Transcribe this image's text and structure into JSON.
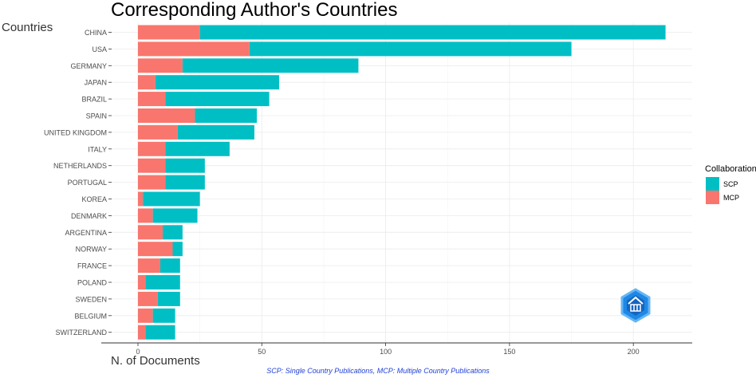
{
  "chart_data": {
    "type": "bar",
    "orientation": "horizontal",
    "stacked": true,
    "title": "Corresponding Author's Countries",
    "xlabel": "N. of Documents",
    "ylabel": "Countries",
    "xlim": [
      0,
      225
    ],
    "xticks": [
      0,
      50,
      100,
      150,
      200
    ],
    "grid": true,
    "categories": [
      "CHINA",
      "USA",
      "GERMANY",
      "JAPAN",
      "BRAZIL",
      "SPAIN",
      "UNITED KINGDOM",
      "ITALY",
      "NETHERLANDS",
      "PORTUGAL",
      "KOREA",
      "DENMARK",
      "ARGENTINA",
      "NORWAY",
      "FRANCE",
      "POLAND",
      "SWEDEN",
      "BELGIUM",
      "SWITZERLAND"
    ],
    "series": [
      {
        "name": "MCP",
        "color": "#F8766D",
        "values": [
          25,
          45,
          18,
          7,
          11,
          23,
          16,
          11,
          11,
          11,
          2,
          6,
          10,
          14,
          9,
          3,
          8,
          6,
          3
        ]
      },
      {
        "name": "SCP",
        "color": "#00BFC4",
        "values": [
          188,
          130,
          71,
          50,
          42,
          25,
          31,
          26,
          16,
          16,
          23,
          18,
          8,
          4,
          8,
          14,
          9,
          9,
          12
        ]
      }
    ],
    "legend": {
      "title": "Collaboration",
      "position": "right",
      "entries": [
        {
          "label": "SCP",
          "color": "#00BFC4"
        },
        {
          "label": "MCP",
          "color": "#F8766D"
        }
      ]
    }
  },
  "caption": "SCP: Single Country Publications, MCP: Multiple Country Publications",
  "logo_icon": "bibliometrix-hexagon-icon"
}
